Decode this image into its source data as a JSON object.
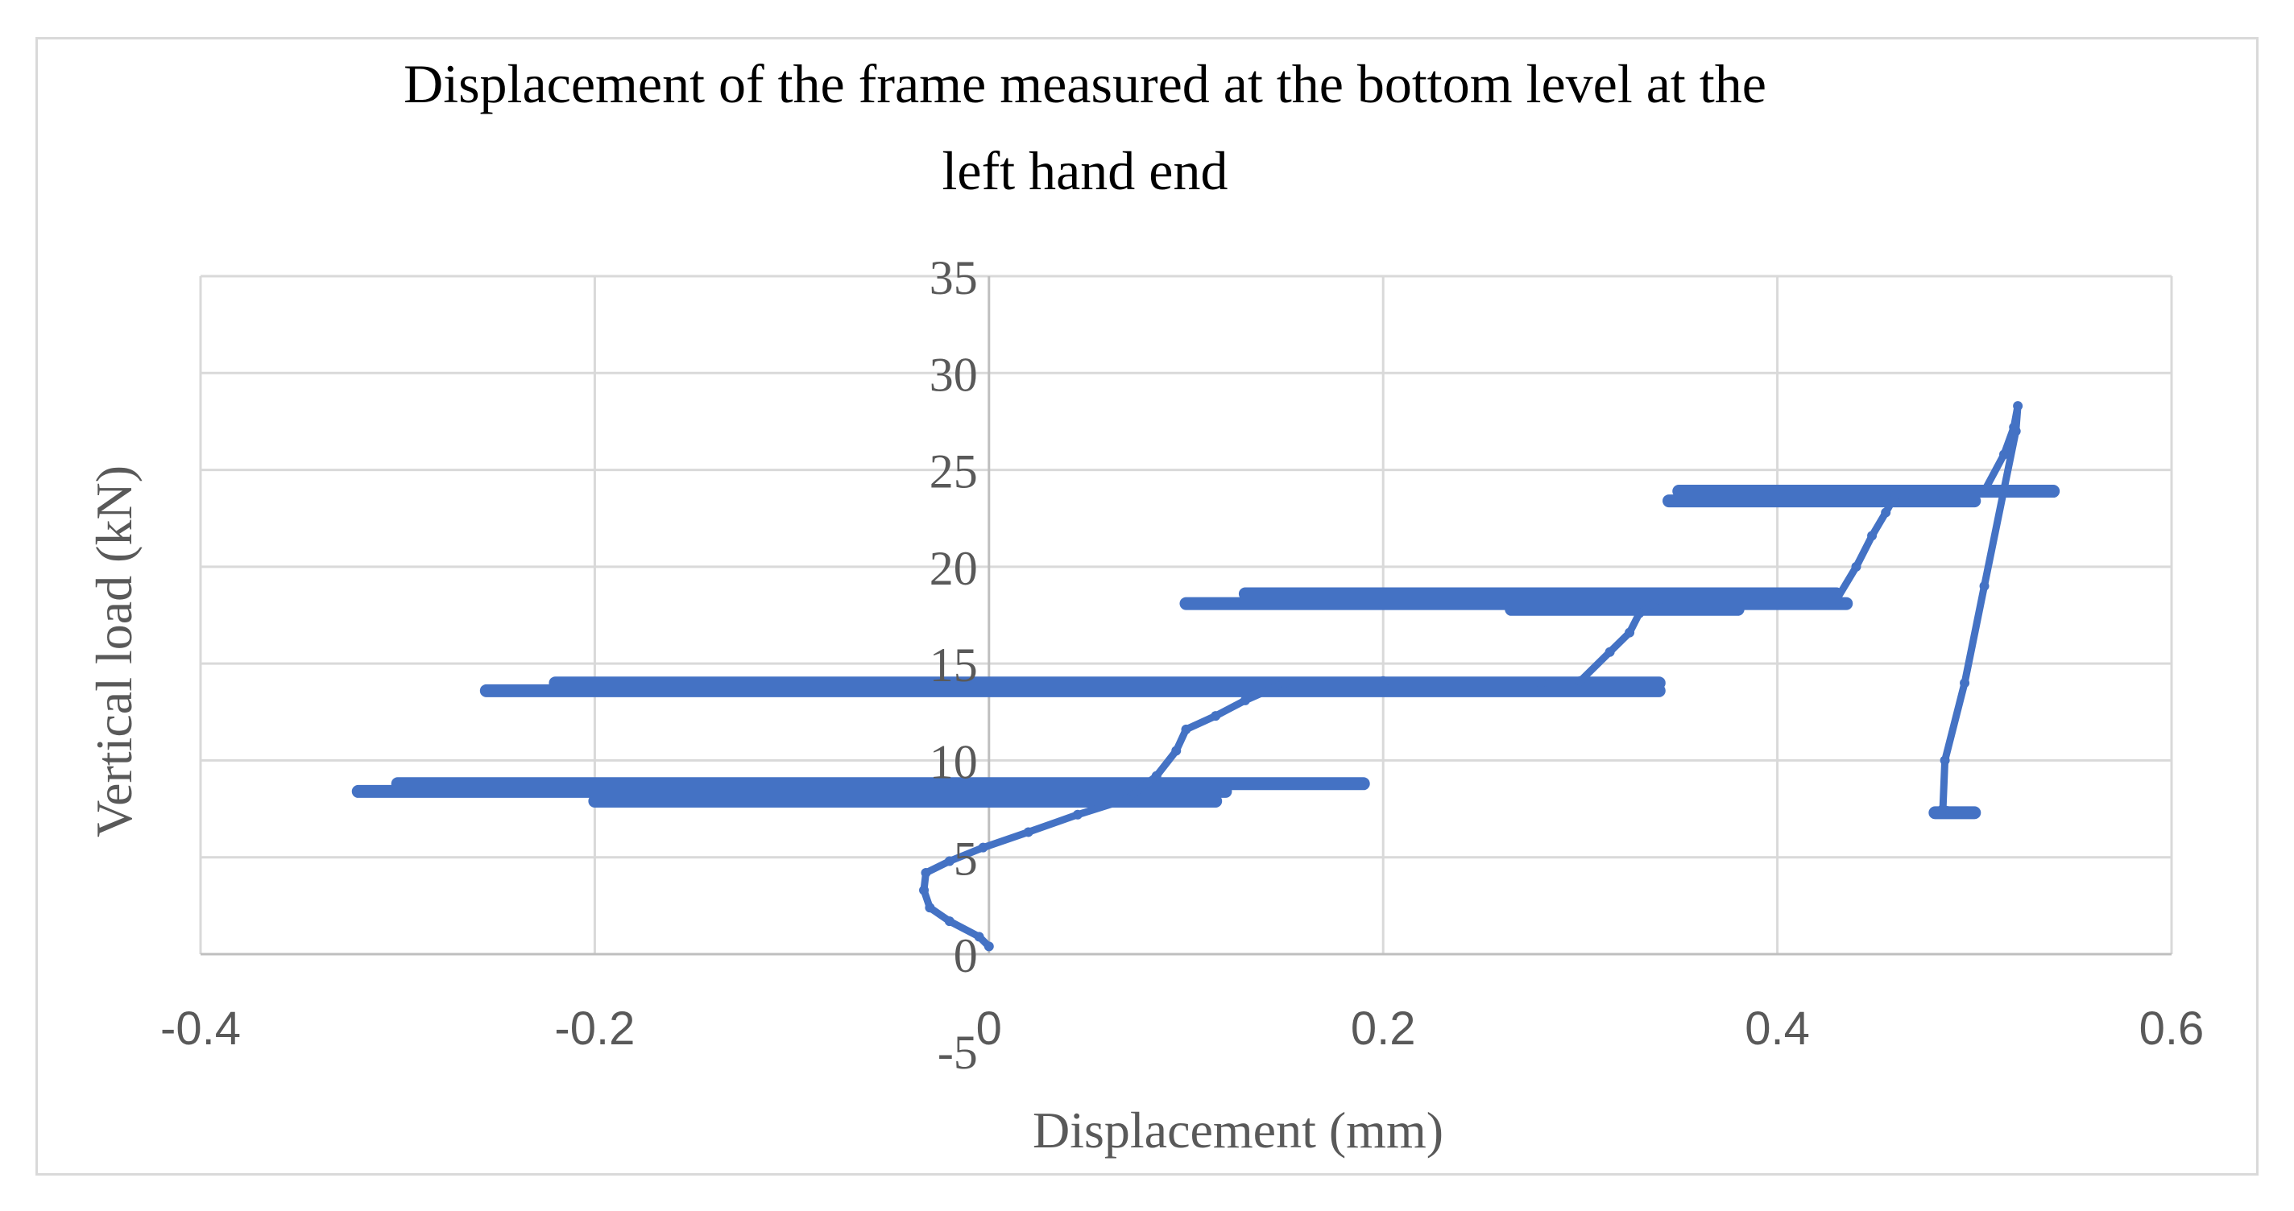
{
  "chart_data": {
    "type": "scatter",
    "title_lines": [
      "Displacement of the frame measured at the bottom level at the",
      "left hand end"
    ],
    "xlabel": "Displacement (mm)",
    "ylabel": "Vertical load (kN)",
    "xlim": [
      -0.4,
      0.6
    ],
    "ylim": [
      0,
      35
    ],
    "x_ticks": [
      -0.4,
      -0.2,
      0,
      0.2,
      0.4,
      0.6
    ],
    "x_tick_labels": [
      "-0.4",
      "-0.2",
      "0",
      "0.2",
      "0.4",
      "0.6"
    ],
    "y_ticks": [
      0,
      5,
      10,
      15,
      20,
      25,
      30,
      35
    ],
    "y_tick_labels": [
      "0",
      "5",
      "10",
      "15",
      "20",
      "25",
      "30",
      "35"
    ],
    "extra_tick_label": "-5",
    "grid": true,
    "legend": "none",
    "series_color": "#4472c4",
    "bands": [
      {
        "y": 8.4,
        "x_start": -0.32,
        "x_end": 0.12
      },
      {
        "y": 8.8,
        "x_start": -0.3,
        "x_end": 0.19
      },
      {
        "y": 7.9,
        "x_start": -0.2,
        "x_end": 0.115
      },
      {
        "y": 13.6,
        "x_start": -0.255,
        "x_end": 0.34
      },
      {
        "y": 14.0,
        "x_start": -0.22,
        "x_end": 0.34
      },
      {
        "y": 13.7,
        "x_start": 0.205,
        "x_end": 0.28
      },
      {
        "y": 18.1,
        "x_start": 0.1,
        "x_end": 0.435
      },
      {
        "y": 18.6,
        "x_start": 0.13,
        "x_end": 0.43
      },
      {
        "y": 17.8,
        "x_start": 0.265,
        "x_end": 0.38
      },
      {
        "y": 23.4,
        "x_start": 0.345,
        "x_end": 0.5
      },
      {
        "y": 23.9,
        "x_start": 0.35,
        "x_end": 0.54
      },
      {
        "y": 7.3,
        "x_start": 0.48,
        "x_end": 0.5
      }
    ],
    "path": [
      [
        0.0,
        0.4
      ],
      [
        -0.005,
        0.9
      ],
      [
        -0.02,
        1.7
      ],
      [
        -0.03,
        2.4
      ],
      [
        -0.033,
        3.3
      ],
      [
        -0.032,
        4.2
      ],
      [
        -0.02,
        4.8
      ],
      [
        -0.003,
        5.5
      ],
      [
        0.02,
        6.3
      ],
      [
        0.045,
        7.2
      ],
      [
        0.07,
        8.0
      ],
      [
        0.085,
        9.2
      ],
      [
        0.095,
        10.5
      ],
      [
        0.1,
        11.6
      ],
      [
        0.115,
        12.3
      ],
      [
        0.13,
        13.1
      ],
      [
        0.15,
        14.0
      ],
      [
        0.2,
        14.1
      ],
      [
        0.28,
        14.0
      ],
      [
        0.3,
        14.1
      ],
      [
        0.315,
        15.6
      ],
      [
        0.325,
        16.6
      ],
      [
        0.33,
        17.6
      ],
      [
        0.34,
        18.3
      ],
      [
        0.43,
        18.3
      ],
      [
        0.44,
        20.0
      ],
      [
        0.448,
        21.6
      ],
      [
        0.455,
        22.8
      ],
      [
        0.46,
        23.7
      ],
      [
        0.505,
        23.9
      ],
      [
        0.515,
        25.8
      ],
      [
        0.52,
        27.2
      ],
      [
        0.522,
        28.3
      ],
      [
        0.521,
        27.0
      ],
      [
        0.515,
        24.0
      ],
      [
        0.505,
        19.0
      ],
      [
        0.495,
        14.0
      ],
      [
        0.485,
        10.0
      ],
      [
        0.484,
        7.5
      ],
      [
        0.495,
        7.3
      ]
    ]
  }
}
